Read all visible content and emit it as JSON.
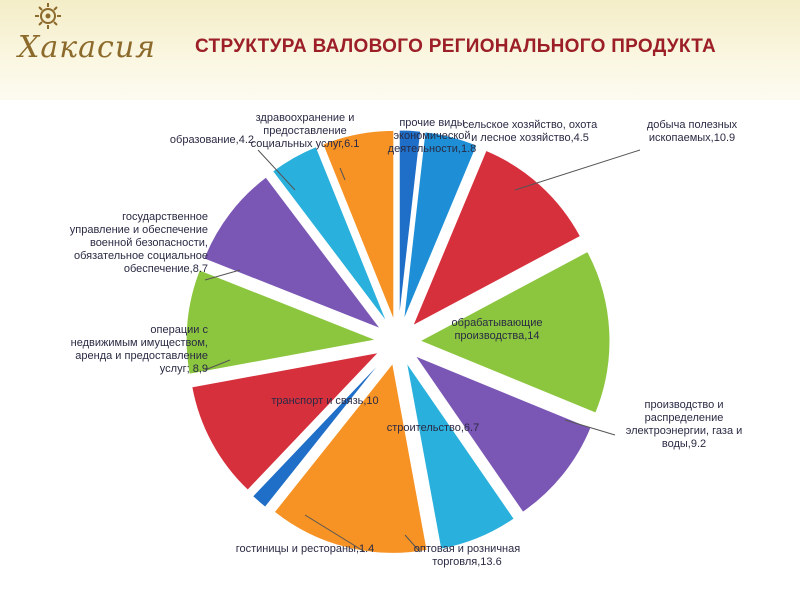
{
  "header": {
    "logo_text": "Хакасия",
    "title": "СТРУКТУРА ВАЛОВОГО РЕГИОНАЛЬНОГО ПРОДУКТА"
  },
  "chart_data": {
    "type": "pie",
    "title": "СТРУКТУРА ВАЛОВОГО РЕГИОНАЛЬНОГО ПРОДУКТА",
    "legend": "none",
    "slices": [
      {
        "label": "прочие виды экономической деятельности",
        "value": 1.8,
        "color": "#1f6ec8"
      },
      {
        "label": "сельское хозяйство, охота и лесное хозяйство",
        "value": 4.5,
        "color": "#1e8fd6"
      },
      {
        "label": "добыча полезных ископаемых",
        "value": 10.9,
        "color": "#d7303d"
      },
      {
        "label": "обрабатывающие производства",
        "value": 14,
        "color": "#8cc63f"
      },
      {
        "label": "производство и распределение электроэнергии, газа и воды",
        "value": 9.2,
        "color": "#7b57b5"
      },
      {
        "label": "строительство",
        "value": 6.7,
        "color": "#2ab0dc"
      },
      {
        "label": "оптовая и розничная торговля",
        "value": 13.6,
        "color": "#f79324"
      },
      {
        "label": "гостиницы и рестораны",
        "value": 1.4,
        "color": "#1f6ec8"
      },
      {
        "label": "транспорт и связь",
        "value": 10,
        "color": "#d7303d"
      },
      {
        "label": "операции с недвижимым имуществом, аренда и предоставление услуг",
        "value": 8.9,
        "color": "#8cc63f"
      },
      {
        "label": "государственное управление и обеспечение военной безопасности, обязательное социальное обеспечение",
        "value": 8.7,
        "color": "#7b57b5"
      },
      {
        "label": "образование",
        "value": 4.2,
        "color": "#2ab0dc"
      },
      {
        "label": "здравоохранение и предоставление социальных услуг",
        "value": 6.1,
        "color": "#f79324"
      }
    ]
  },
  "labels": [
    {
      "lines": [
        "прочие виды",
        "экономической",
        "деятельности,1.8"
      ]
    },
    {
      "lines": [
        "сельское хозяйство, охота",
        "и лесное хозяйство,4.5"
      ]
    },
    {
      "lines": [
        "добыча полезных",
        "ископаемых,10.9"
      ]
    },
    {
      "lines": [
        "обрабатывающие",
        "производства,14"
      ]
    },
    {
      "lines": [
        "производство и",
        "распределение",
        "электроэнергии, газа и",
        "воды,9.2"
      ]
    },
    {
      "lines": [
        "строительство,6.7"
      ]
    },
    {
      "lines": [
        "оптовая и розничная",
        "торговля,13.6"
      ]
    },
    {
      "lines": [
        "гостиницы и рестораны,1.4"
      ]
    },
    {
      "lines": [
        "транспорт и связь,10"
      ]
    },
    {
      "lines": [
        "операции с",
        "недвижимым имуществом,",
        "аренда и предоставление",
        "услуг; 8,9"
      ]
    },
    {
      "lines": [
        "государственное",
        "управление и обеспечение",
        "военной безопасности,",
        "обязательное социальное",
        "обеспечение,8.7"
      ]
    },
    {
      "lines": [
        "образование,4.2"
      ]
    },
    {
      "lines": [
        "здравоохранение и",
        "предоставление",
        "социальных услуг,6.1"
      ]
    }
  ]
}
